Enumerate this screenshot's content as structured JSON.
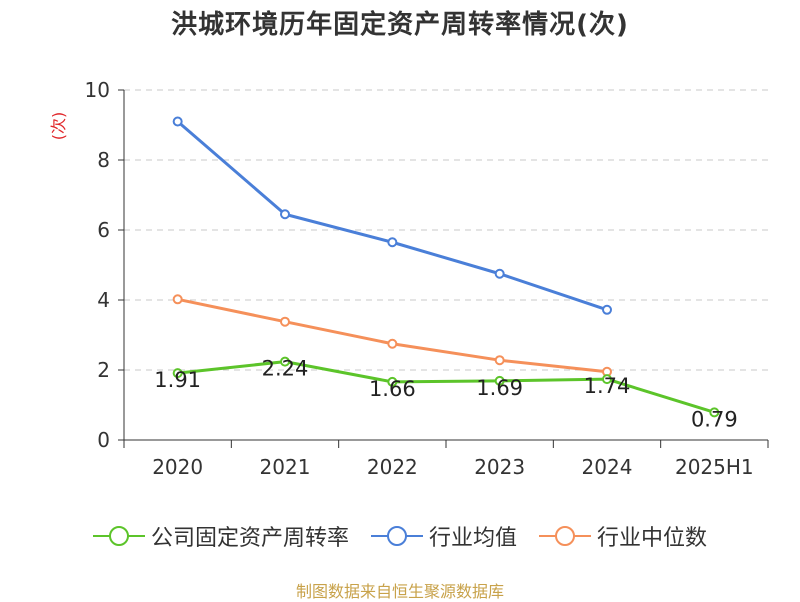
{
  "chart_data": {
    "type": "line",
    "title": "洪城环境历年固定资产周转率情况(次)",
    "ylabel": "(次)",
    "categories": [
      "2020",
      "2021",
      "2022",
      "2023",
      "2024",
      "2025H1"
    ],
    "ylim": [
      0,
      10
    ],
    "yticks": [
      0,
      2,
      4,
      6,
      8,
      10
    ],
    "grid": true,
    "legend_position": "bottom",
    "series": [
      {
        "name": "公司固定资产周转率",
        "color": "#5cc42a",
        "values": [
          1.91,
          2.24,
          1.66,
          1.69,
          1.74,
          0.79
        ],
        "labels": [
          "1.91",
          "2.24",
          "1.66",
          "1.69",
          "1.74",
          "0.79"
        ]
      },
      {
        "name": "行业均值",
        "color": "#4a7fd8",
        "values": [
          9.1,
          6.45,
          5.65,
          4.75,
          3.72,
          null
        ]
      },
      {
        "name": "行业中位数",
        "color": "#f5905a",
        "values": [
          4.02,
          3.38,
          2.75,
          2.28,
          1.95,
          null
        ]
      }
    ],
    "source": "制图数据来自恒生聚源数据库"
  }
}
